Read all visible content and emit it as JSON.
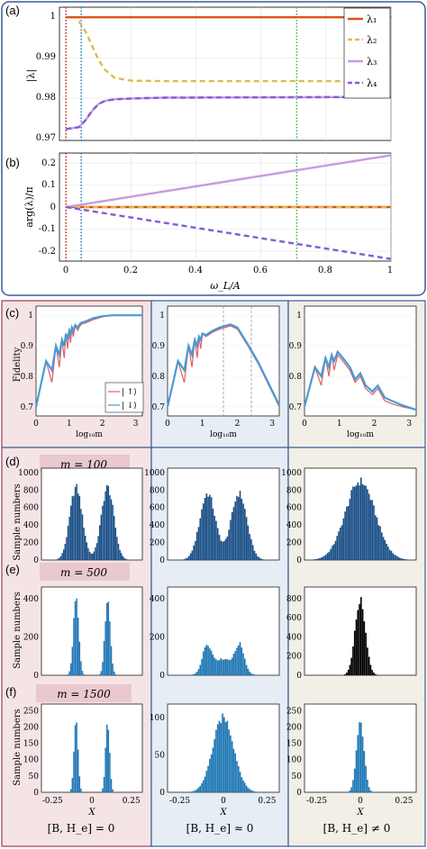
{
  "panels": {
    "a": {
      "label": "(a)",
      "ylabel": "|λ|",
      "yticks": [
        "1",
        "0.99",
        "0.98",
        "0.97"
      ]
    },
    "b": {
      "label": "(b)",
      "ylabel": "arg(λ)/π",
      "yticks": [
        "0.2",
        "0.1",
        "0",
        "-0.1",
        "-0.2"
      ],
      "xticks": [
        "0",
        "0.2",
        "0.4",
        "0.6",
        "0.8",
        "1"
      ],
      "xlabel": "ω_L/A"
    },
    "c": {
      "label": "(c)",
      "ylabel": "Fidelity",
      "xlabel": "log₁₀m",
      "yticks": [
        "1",
        "0.9",
        "0.8",
        "0.7"
      ],
      "xticks": [
        "0",
        "1",
        "2",
        "3"
      ],
      "legend": [
        "| ↑⟩",
        "| ↓⟩"
      ]
    },
    "d": {
      "label": "(d)",
      "title": "m = 100",
      "yticks": [
        "1000",
        "800",
        "600",
        "400",
        "200",
        "0"
      ]
    },
    "e": {
      "label": "(e)",
      "title": "m = 500",
      "yticks_left": [
        "400",
        "200",
        "0"
      ],
      "yticks_right": [
        "800",
        "600",
        "400",
        "200",
        "0"
      ]
    },
    "f": {
      "label": "(f)",
      "title": "m = 1500",
      "yticks_left": [
        "250",
        "200",
        "150",
        "100",
        "50",
        "0"
      ],
      "yticks_mid": [
        "100",
        "50",
        "0"
      ],
      "yticks_right": [
        "250",
        "200",
        "150",
        "100",
        "50",
        "0"
      ],
      "xticks": [
        "-0.25",
        "0",
        "0.25"
      ],
      "xlabel": "X"
    },
    "hist_ylabel": "Sample numbers"
  },
  "columns": [
    {
      "condition": "[B, H_e] = 0",
      "color": "#f5e4e6"
    },
    {
      "condition": "[B, H_e] ≈ 0",
      "color": "#e6edf5"
    },
    {
      "condition": "[B, H_e] ≠ 0",
      "color": "#f1efe6"
    }
  ],
  "colors": {
    "lambda1": "#d95319",
    "lambda2": "#e0b94b",
    "lambda3": "#c99ae0",
    "lambda4": "#7e5fd6",
    "up": "#e06060",
    "down": "#4a9ad6",
    "hist": "#1f77b4",
    "hist_dark": "#1a4f86",
    "black": "#000000"
  },
  "chart_data": [
    {
      "type": "line",
      "panel": "a",
      "xlim": [
        -0.02,
        1
      ],
      "ylim": [
        0.9695,
        1.0025
      ],
      "series": [
        {
          "name": "λ₁",
          "style": "solid",
          "color": "#d95319",
          "x": [
            0,
            1
          ],
          "y": [
            1.0,
            1.0
          ]
        },
        {
          "name": "λ₂",
          "style": "dashed",
          "color": "#e0b94b",
          "x": [
            0.04,
            0.06,
            0.08,
            0.1,
            0.12,
            0.15,
            0.2,
            0.3,
            0.5,
            1.0
          ],
          "y": [
            0.999,
            0.9965,
            0.993,
            0.9895,
            0.987,
            0.985,
            0.9843,
            0.9842,
            0.9842,
            0.9842
          ]
        },
        {
          "name": "λ₃",
          "style": "solid",
          "color": "#c99ae0",
          "x": [
            0,
            0.04,
            0.06,
            0.08,
            0.1,
            0.12,
            0.15,
            0.2,
            0.3,
            1.0
          ],
          "y": [
            0.9723,
            0.9728,
            0.9745,
            0.9768,
            0.9785,
            0.9793,
            0.9797,
            0.9799,
            0.9801,
            0.9803
          ]
        },
        {
          "name": "λ₄",
          "style": "dashed",
          "color": "#7e5fd6",
          "x": [
            0,
            0.04,
            0.06,
            0.08,
            0.1,
            0.12,
            0.15,
            0.2,
            0.3,
            1.0
          ],
          "y": [
            0.9723,
            0.9728,
            0.9745,
            0.9768,
            0.9785,
            0.9793,
            0.9797,
            0.9799,
            0.9801,
            0.9803
          ]
        }
      ],
      "vlines": [
        {
          "x": 0,
          "color": "#c0392b"
        },
        {
          "x": 0.047,
          "color": "#2e86c1"
        },
        {
          "x": 0.71,
          "color": "#4caf50"
        }
      ]
    },
    {
      "type": "line",
      "panel": "b",
      "xlim": [
        -0.02,
        1
      ],
      "ylim": [
        -0.245,
        0.245
      ],
      "series": [
        {
          "name": "λ₁",
          "style": "solid",
          "color": "#d95319",
          "x": [
            0,
            1
          ],
          "y": [
            0,
            0
          ]
        },
        {
          "name": "λ₂",
          "style": "dashed",
          "color": "#e0b94b",
          "x": [
            0,
            1
          ],
          "y": [
            0,
            0
          ]
        },
        {
          "name": "λ₃",
          "style": "solid",
          "color": "#c99ae0",
          "x": [
            0,
            1
          ],
          "y": [
            0,
            0.235
          ]
        },
        {
          "name": "λ₄",
          "style": "dashed",
          "color": "#7e5fd6",
          "x": [
            0,
            1
          ],
          "y": [
            0,
            -0.235
          ]
        }
      ],
      "vlines": [
        {
          "x": 0,
          "color": "#c0392b"
        },
        {
          "x": 0.047,
          "color": "#2e86c1"
        },
        {
          "x": 0.71,
          "color": "#4caf50"
        }
      ]
    },
    {
      "type": "line",
      "panel": "c1",
      "xlim": [
        0,
        3.2
      ],
      "ylim": [
        0.67,
        1.03
      ],
      "series": [
        {
          "name": "| ↑⟩",
          "color": "#e06060",
          "x": [
            0,
            0.3,
            0.48,
            0.6,
            0.7,
            0.78,
            0.85,
            0.9,
            0.95,
            1.0,
            1.04,
            1.08,
            1.12,
            1.18,
            1.25,
            1.35,
            1.5,
            1.7,
            2.0,
            2.3,
            3.2
          ],
          "y": [
            0.7,
            0.85,
            0.78,
            0.9,
            0.83,
            0.92,
            0.86,
            0.94,
            0.89,
            0.95,
            0.91,
            0.96,
            0.93,
            0.965,
            0.95,
            0.97,
            0.975,
            0.985,
            0.995,
            1.0,
            1.0
          ]
        },
        {
          "name": "| ↓⟩",
          "color": "#4a9ad6",
          "x": [
            0,
            0.3,
            0.48,
            0.6,
            0.7,
            0.78,
            0.85,
            0.9,
            0.95,
            1.0,
            1.04,
            1.08,
            1.12,
            1.18,
            1.25,
            1.35,
            1.5,
            1.7,
            2.0,
            2.3,
            3.2
          ],
          "y": [
            0.7,
            0.85,
            0.82,
            0.9,
            0.87,
            0.92,
            0.9,
            0.94,
            0.92,
            0.95,
            0.94,
            0.96,
            0.95,
            0.968,
            0.96,
            0.975,
            0.98,
            0.99,
            0.997,
            1.0,
            1.0
          ]
        }
      ]
    },
    {
      "type": "line",
      "panel": "c2",
      "xlim": [
        0,
        3.2
      ],
      "ylim": [
        0.67,
        1.03
      ],
      "series": [
        {
          "name": "| ↑⟩",
          "color": "#e06060",
          "x": [
            0,
            0.3,
            0.48,
            0.6,
            0.7,
            0.78,
            0.85,
            0.9,
            0.95,
            1.0,
            1.1,
            1.3,
            1.5,
            1.8,
            2.0,
            2.3,
            2.6,
            2.9,
            3.2
          ],
          "y": [
            0.7,
            0.85,
            0.78,
            0.9,
            0.83,
            0.92,
            0.86,
            0.93,
            0.89,
            0.94,
            0.93,
            0.945,
            0.955,
            0.965,
            0.955,
            0.9,
            0.84,
            0.77,
            0.7
          ]
        },
        {
          "name": "| ↓⟩",
          "color": "#4a9ad6",
          "x": [
            0,
            0.3,
            0.48,
            0.6,
            0.7,
            0.78,
            0.85,
            0.9,
            0.95,
            1.0,
            1.1,
            1.3,
            1.5,
            1.8,
            2.0,
            2.3,
            2.6,
            2.9,
            3.2
          ],
          "y": [
            0.7,
            0.85,
            0.82,
            0.9,
            0.87,
            0.92,
            0.9,
            0.93,
            0.92,
            0.94,
            0.935,
            0.95,
            0.96,
            0.97,
            0.96,
            0.905,
            0.845,
            0.775,
            0.705
          ]
        }
      ]
    },
    {
      "type": "line",
      "panel": "c3",
      "xlim": [
        0,
        3.2
      ],
      "ylim": [
        0.67,
        1.03
      ],
      "series": [
        {
          "name": "| ↑⟩",
          "color": "#e06060",
          "x": [
            0,
            0.3,
            0.48,
            0.6,
            0.7,
            0.78,
            0.85,
            0.95,
            1.1,
            1.3,
            1.45,
            1.6,
            1.75,
            1.95,
            2.1,
            2.3,
            2.5,
            2.8,
            3.2
          ],
          "y": [
            0.7,
            0.83,
            0.77,
            0.86,
            0.8,
            0.87,
            0.82,
            0.87,
            0.85,
            0.82,
            0.78,
            0.8,
            0.76,
            0.74,
            0.76,
            0.72,
            0.71,
            0.7,
            0.69
          ]
        },
        {
          "name": "| ↓⟩",
          "color": "#4a9ad6",
          "x": [
            0,
            0.3,
            0.48,
            0.6,
            0.7,
            0.78,
            0.85,
            0.95,
            1.1,
            1.3,
            1.45,
            1.6,
            1.75,
            1.95,
            2.1,
            2.3,
            2.5,
            2.8,
            3.2
          ],
          "y": [
            0.7,
            0.83,
            0.8,
            0.86,
            0.83,
            0.87,
            0.85,
            0.88,
            0.86,
            0.83,
            0.79,
            0.81,
            0.77,
            0.75,
            0.77,
            0.73,
            0.72,
            0.705,
            0.69
          ]
        }
      ]
    },
    {
      "type": "histogram",
      "panel": "d1",
      "xlim": [
        -0.32,
        0.32
      ],
      "ylim": [
        0,
        1050
      ],
      "peaks": [
        {
          "mu": -0.1,
          "sigma": 0.04,
          "amp": 830
        },
        {
          "mu": 0.1,
          "sigma": 0.04,
          "amp": 830
        }
      ],
      "color": "#1a4f86"
    },
    {
      "type": "histogram",
      "panel": "d2",
      "xlim": [
        -0.32,
        0.32
      ],
      "ylim": [
        0,
        1050
      ],
      "peaks": [
        {
          "mu": -0.09,
          "sigma": 0.045,
          "amp": 760
        },
        {
          "mu": 0.09,
          "sigma": 0.045,
          "amp": 760
        }
      ],
      "color": "#1a4f86"
    },
    {
      "type": "histogram",
      "panel": "d3",
      "xlim": [
        -0.32,
        0.32
      ],
      "ylim": [
        0,
        1050
      ],
      "peaks": [
        {
          "mu": 0.0,
          "sigma": 0.085,
          "amp": 900
        }
      ],
      "color": "#1a4f86"
    },
    {
      "type": "histogram",
      "panel": "e1",
      "xlim": [
        -0.32,
        0.32
      ],
      "ylim": [
        0,
        460
      ],
      "peaks": [
        {
          "mu": -0.1,
          "sigma": 0.017,
          "amp": 400
        },
        {
          "mu": 0.1,
          "sigma": 0.017,
          "amp": 400
        }
      ],
      "color": "#1f77b4"
    },
    {
      "type": "histogram",
      "panel": "e2",
      "xlim": [
        -0.32,
        0.32
      ],
      "ylim": [
        0,
        460
      ],
      "peaks": [
        {
          "mu": -0.095,
          "sigma": 0.025,
          "amp": 130
        },
        {
          "mu": 0.095,
          "sigma": 0.025,
          "amp": 130
        },
        {
          "mu": 0.0,
          "sigma": 0.07,
          "amp": 85
        }
      ],
      "color": "#1f77b4"
    },
    {
      "type": "histogram",
      "panel": "e3",
      "xlim": [
        -0.32,
        0.32
      ],
      "ylim": [
        0,
        920
      ],
      "peaks": [
        {
          "mu": 0.0,
          "sigma": 0.03,
          "amp": 780
        }
      ],
      "color": "#000000"
    },
    {
      "type": "histogram",
      "panel": "f1",
      "xlim": [
        -0.32,
        0.32
      ],
      "ylim": [
        0,
        270
      ],
      "peaks": [
        {
          "mu": -0.1,
          "sigma": 0.013,
          "amp": 215
        },
        {
          "mu": 0.1,
          "sigma": 0.013,
          "amp": 215
        }
      ],
      "color": "#1f77b4"
    },
    {
      "type": "histogram",
      "panel": "f2",
      "xlim": [
        -0.32,
        0.32
      ],
      "ylim": [
        0,
        118
      ],
      "peaks": [
        {
          "mu": 0.0,
          "sigma": 0.06,
          "amp": 100
        }
      ],
      "color": "#1f77b4"
    },
    {
      "type": "histogram",
      "panel": "f3",
      "xlim": [
        -0.32,
        0.32
      ],
      "ylim": [
        0,
        270
      ],
      "peaks": [
        {
          "mu": 0.0,
          "sigma": 0.022,
          "amp": 220
        }
      ],
      "color": "#1f77b4"
    }
  ]
}
